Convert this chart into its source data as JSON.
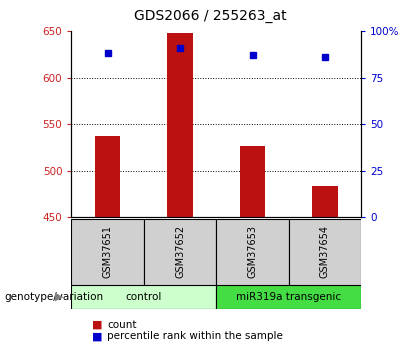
{
  "title": "GDS2066 / 255263_at",
  "samples": [
    "GSM37651",
    "GSM37652",
    "GSM37653",
    "GSM37654"
  ],
  "bar_values": [
    537,
    648,
    527,
    484
  ],
  "bar_bottom": 450,
  "percentile_values": [
    88,
    91,
    87,
    86
  ],
  "bar_color": "#bb1111",
  "marker_color": "#0000cc",
  "ylim_left": [
    450,
    650
  ],
  "ylim_right": [
    0,
    100
  ],
  "yticks_left": [
    450,
    500,
    550,
    600,
    650
  ],
  "yticks_right": [
    0,
    25,
    50,
    75,
    100
  ],
  "ytick_right_labels": [
    "0",
    "25",
    "50",
    "75",
    "100%"
  ],
  "grid_values": [
    500,
    550,
    600
  ],
  "groups": [
    {
      "label": "control",
      "indices": [
        0,
        1
      ],
      "color": "#ccffcc"
    },
    {
      "label": "miR319a transgenic",
      "indices": [
        2,
        3
      ],
      "color": "#44dd44"
    }
  ],
  "xlabel_label": "genotype/variation",
  "legend_count_label": "count",
  "legend_pct_label": "percentile rank within the sample",
  "bar_width": 0.35,
  "left_tick_color": "#cc2222",
  "right_tick_color": "#0000cc",
  "sample_box_color": "#d0d0d0",
  "spine_color": "#000000"
}
